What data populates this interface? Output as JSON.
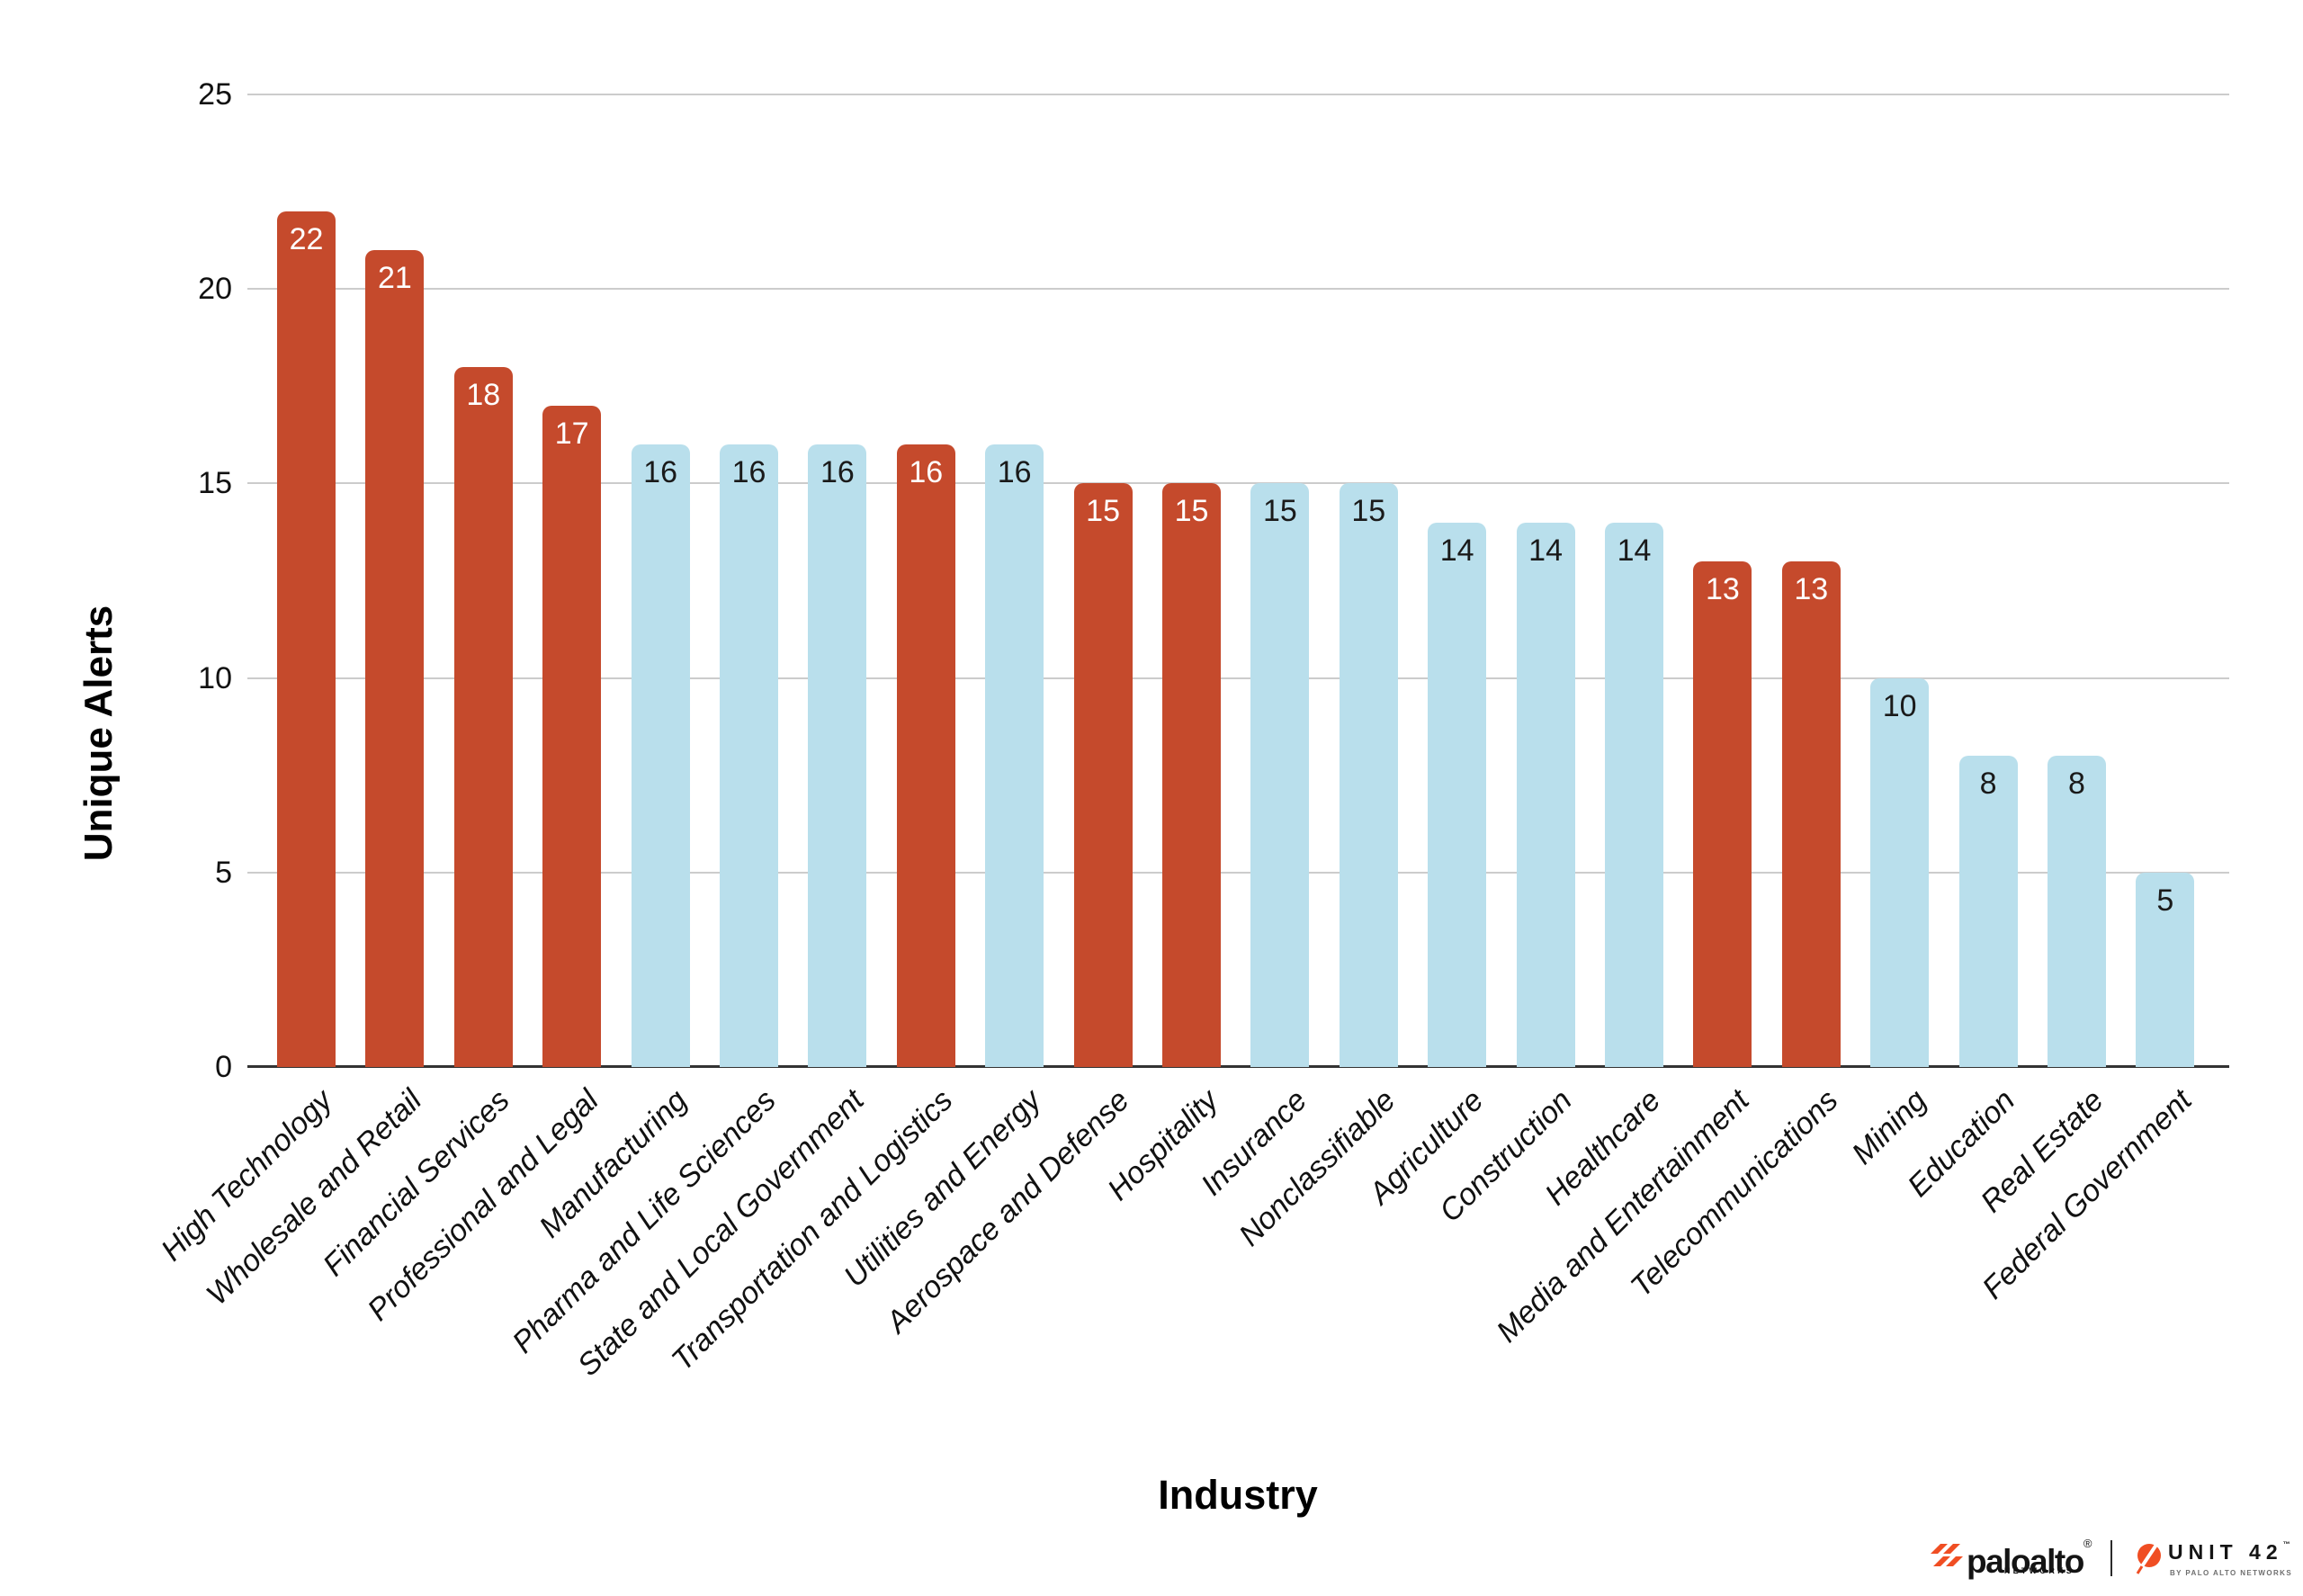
{
  "chart_data": {
    "type": "bar",
    "title": "",
    "xlabel": "Industry",
    "ylabel": "Unique Alerts",
    "ylim": [
      0,
      25
    ],
    "y_ticks": [
      0,
      5,
      10,
      15,
      20,
      25
    ],
    "grid": true,
    "legend_position": "none",
    "categories": [
      "High Technology",
      "Wholesale and Retail",
      "Financial Services",
      "Professional and Legal",
      "Manufacturing",
      "Pharma and Life Sciences",
      "State and Local Government",
      "Transportation and Logistics",
      "Utilities and Energy",
      "Aerospace and Defense",
      "Hospitality",
      "Insurance",
      "Nonclassifiable",
      "Agriculture",
      "Construction",
      "Healthcare",
      "Media and Entertainment",
      "Telecommunications",
      "Mining",
      "Education",
      "Real Estate",
      "Federal Government"
    ],
    "values": [
      22,
      21,
      18,
      17,
      16,
      16,
      16,
      16,
      16,
      15,
      15,
      15,
      15,
      14,
      14,
      14,
      13,
      13,
      10,
      8,
      8,
      5
    ],
    "bar_colors": [
      "#C54A2C",
      "#C54A2C",
      "#C54A2C",
      "#C54A2C",
      "#B9DFEC",
      "#B9DFEC",
      "#B9DFEC",
      "#C54A2C",
      "#B9DFEC",
      "#C54A2C",
      "#C54A2C",
      "#B9DFEC",
      "#B9DFEC",
      "#B9DFEC",
      "#B9DFEC",
      "#B9DFEC",
      "#C54A2C",
      "#C54A2C",
      "#B9DFEC",
      "#B9DFEC",
      "#B9DFEC",
      "#B9DFEC"
    ],
    "data_label_colors": [
      "#ffffff",
      "#ffffff",
      "#ffffff",
      "#ffffff",
      "#1a1a1a",
      "#1a1a1a",
      "#1a1a1a",
      "#ffffff",
      "#1a1a1a",
      "#ffffff",
      "#ffffff",
      "#1a1a1a",
      "#1a1a1a",
      "#1a1a1a",
      "#1a1a1a",
      "#1a1a1a",
      "#ffffff",
      "#ffffff",
      "#1a1a1a",
      "#1a1a1a",
      "#1a1a1a",
      "#1a1a1a"
    ]
  },
  "colors": {
    "highlight_bar": "#C54A2C",
    "base_bar": "#B9DFEC",
    "gridline": "#cccccc",
    "axis_line": "#333333",
    "brand_orange": "#F04E23"
  },
  "footer": {
    "paloalto_wordmark": "paloalto",
    "paloalto_registered": "®",
    "paloalto_networks": "NETWORKS",
    "unit42_wordmark": "UNIT 42",
    "unit42_trademark": "™",
    "unit42_subtext": "BY PALO ALTO NETWORKS"
  }
}
